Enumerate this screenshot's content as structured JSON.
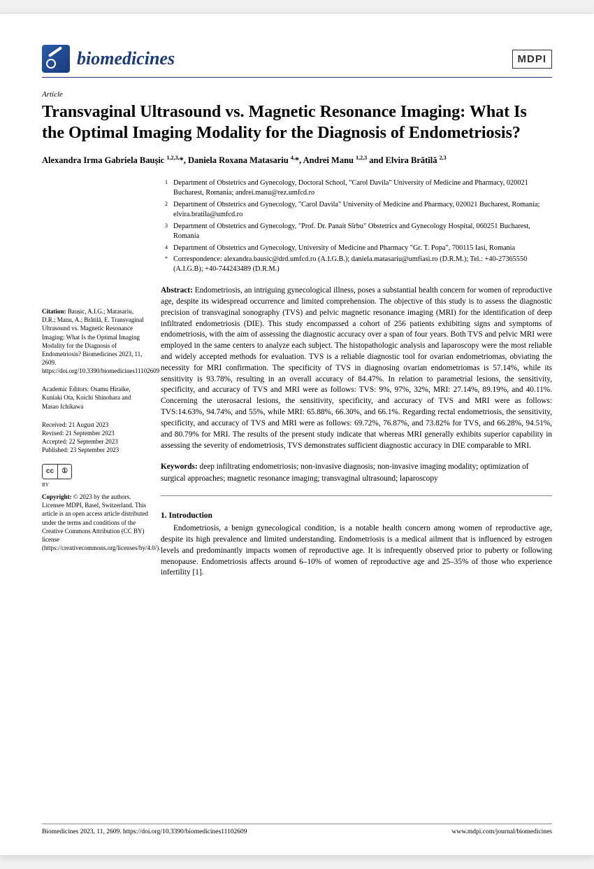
{
  "journal": {
    "name": "biomedicines",
    "publisher_badge": "MDPI",
    "article_type": "Article"
  },
  "title": "Transvaginal Ultrasound vs. Magnetic Resonance Imaging: What Is the Optimal Imaging Modality for the Diagnosis of Endometriosis?",
  "authors_html": "Alexandra Irma Gabriela Baușic <sup>1,2,3,</sup>*, Daniela Roxana Matasariu <sup>4,</sup>*, Andrei Manu <sup>1,2,3</sup> and Elvira Brătilă <sup>2,3</sup>",
  "affiliations": [
    {
      "marker": "1",
      "text": "Department of Obstetrics and Gynecology, Doctoral School, \"Carol Davila\" University of Medicine and Pharmacy, 020021 Bucharest, Romania; andrei.manu@rez.umfcd.ro"
    },
    {
      "marker": "2",
      "text": "Department of Obstetrics and Gynecology, \"Carol Davila\" University of Medicine and Pharmacy, 020021 Bucharest, Romania; elvira.bratila@umfcd.ro"
    },
    {
      "marker": "3",
      "text": "Department of Obstetrics and Gynecology, \"Prof. Dr. Panait Sîrbu\" Obstetrics and Gynecology Hospital, 060251 Bucharest, Romania"
    },
    {
      "marker": "4",
      "text": "Department of Obstetrics and Gynecology, University of Medicine and Pharmacy \"Gr. T. Popa\", 700115 Iasi, Romania"
    },
    {
      "marker": "*",
      "text": "Correspondence: alexandra.bausic@drd.umfcd.ro (A.I.G.B.); daniela.matasariu@umfiasi.ro (D.R.M.); Tel.: +40-27365550 (A.I.G.B); +40-744243489 (D.R.M.)"
    }
  ],
  "abstract_label": "Abstract:",
  "abstract": "Endometriosis, an intriguing gynecological illness, poses a substantial health concern for women of reproductive age, despite its widespread occurrence and limited comprehension. The objective of this study is to assess the diagnostic precision of transvaginal sonography (TVS) and pelvic magnetic resonance imaging (MRI) for the identification of deep infiltrated endometriosis (DIE). This study encompassed a cohort of 256 patients exhibiting signs and symptoms of endometriosis, with the aim of assessing the diagnostic accuracy over a span of four years. Both TVS and pelvic MRI were employed in the same centers to analyze each subject. The histopathologic analysis and laparoscopy were the most reliable and widely accepted methods for evaluation. TVS is a reliable diagnostic tool for ovarian endometriomas, obviating the necessity for MRI confirmation. The specificity of TVS in diagnosing ovarian endometriomas is 57.14%, while its sensitivity is 93.78%, resulting in an overall accuracy of 84.47%. In relation to parametrial lesions, the sensitivity, specificity, and accuracy of TVS and MRI were as follows: TVS: 9%, 97%, 32%, MRI: 27.14%, 89.19%, and 40.11%. Concerning the uterosacral lesions, the sensitivity, specificity, and accuracy of TVS and MRI were as follows: TVS:14.63%, 94.74%, and 55%, while MRI: 65.88%, 66.30%, and 66.1%. Regarding rectal endometriosis, the sensitivity, specificity, and accuracy of TVS and MRI were as follows: 69.72%, 76.87%, and 73.82% for TVS, and 66.28%, 94.51%, and 80.79% for MRI. The results of the present study indicate that whereas MRI generally exhibits superior capability in assessing the severity of endometriosis, TVS demonstrates sufficient diagnostic accuracy in DIE comparable to MRI.",
  "keywords_label": "Keywords:",
  "keywords": "deep infiltrating endometriosis; non-invasive diagnosis; non-invasive imaging modality; optimization of surgical approaches; magnetic resonance imaging; transvaginal ultrasound; laparoscopy",
  "section1": {
    "heading": "1. Introduction",
    "body": "Endometriosis, a benign gynecological condition, is a notable health concern among women of reproductive age, despite its high prevalence and limited understanding. Endometriosis is a medical ailment that is influenced by estrogen levels and predominantly impacts women of reproductive age. It is infrequently observed prior to puberty or following menopause. Endometriosis affects around 6–10% of women of reproductive age and 25–35% of those who experience infertility [1]."
  },
  "sidebar": {
    "citation_label": "Citation:",
    "citation": "Baușic, A.I.G.; Matasariu, D.R.; Manu, A.; Brătilă, E. Transvaginal Ultrasound vs. Magnetic Resonance Imaging: What Is the Optimal Imaging Modality for the Diagnosis of Endometriosis? Biomedicines 2023, 11, 2609. https://doi.org/10.3390/biomedicines11102609",
    "academic_editors_label": "Academic Editors:",
    "academic_editors": "Osamu Hiraike, Kuniaki Ota, Koichi Shinohara and Masao Ichikawa",
    "received": "Received: 21 August 2023",
    "revised": "Revised: 21 September 2023",
    "accepted": "Accepted: 22 September 2023",
    "published": "Published: 23 September 2023",
    "cc_label_cc": "cc",
    "cc_label_by": "①",
    "cc_label_txt": "BY",
    "copyright_label": "Copyright:",
    "copyright": "© 2023 by the authors. Licensee MDPI, Basel, Switzerland. This article is an open access article distributed under the terms and conditions of the Creative Commons Attribution (CC BY) license (https://creativecommons.org/licenses/by/4.0/)."
  },
  "footer": {
    "left": "Biomedicines 2023, 11, 2609. https://doi.org/10.3390/biomedicines11102609",
    "right": "www.mdpi.com/journal/biomedicines"
  }
}
